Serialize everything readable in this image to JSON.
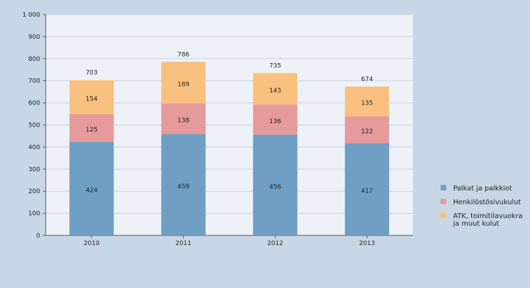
{
  "chart_data": {
    "type": "bar",
    "stacked": true,
    "categories": [
      "2010",
      "2011",
      "2012",
      "2013"
    ],
    "series": [
      {
        "name": "Palkat ja palkkiot",
        "values": [
          424,
          459,
          456,
          417
        ],
        "color": "#6f9fc4"
      },
      {
        "name": "Henkilöstösivukulut",
        "values": [
          125,
          138,
          136,
          122
        ],
        "color": "#e59a9c"
      },
      {
        "name": "ATK, toimitilavuokra ja muut kulut",
        "values": [
          154,
          189,
          143,
          135
        ],
        "color": "#f8c180"
      }
    ],
    "totals": [
      703,
      786,
      735,
      674
    ],
    "ylim": [
      0,
      1000
    ],
    "yticks": [
      0,
      100,
      200,
      300,
      400,
      500,
      600,
      700,
      800,
      900,
      1000
    ],
    "ytick_labels": [
      "0",
      "100",
      "200",
      "300",
      "400",
      "500",
      "600",
      "700",
      "800",
      "900",
      "1 000"
    ],
    "grid": true,
    "legend_position": "right",
    "legend_lines": [
      [
        "Palkat ja palkkiot"
      ],
      [
        "Henkilöstösivukulut"
      ],
      [
        "ATK, toimitilavuokra",
        "ja muut kulut"
      ]
    ],
    "title": "",
    "xlabel": "",
    "ylabel": "",
    "plot_background": "#eef2f8",
    "page_background": "#c8d7e6",
    "gridline_color": "#c6cfd9"
  }
}
